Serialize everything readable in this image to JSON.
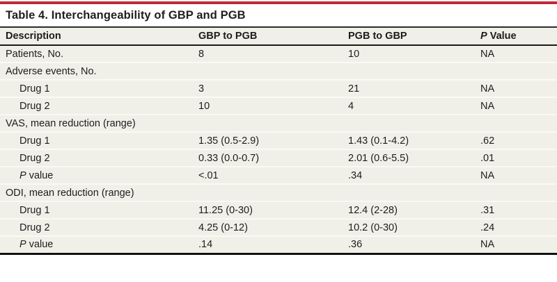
{
  "colors": {
    "accent": "#C12A39",
    "table_bg": "#F1F0E8",
    "rule_dark": "#1F1F1F",
    "row_separator": "#FAF9F2",
    "text": "#1C1C1C",
    "page_bg": "#FFFFFF"
  },
  "title": "Table 4. Interchangeability of GBP and PGB",
  "table": {
    "columns": [
      {
        "italic": "",
        "text": "Description"
      },
      {
        "italic": "",
        "text": "GBP to PGB"
      },
      {
        "italic": "",
        "text": "PGB to GBP"
      },
      {
        "italic": "P",
        "text": " Value"
      }
    ],
    "rows": [
      {
        "label": {
          "italic": "",
          "text": "Patients, No."
        },
        "indent": false,
        "values": [
          "8",
          "10",
          "NA"
        ]
      },
      {
        "label": {
          "italic": "",
          "text": "Adverse events, No."
        },
        "indent": false,
        "values": [
          "",
          "",
          ""
        ]
      },
      {
        "label": {
          "italic": "",
          "text": "Drug 1"
        },
        "indent": true,
        "values": [
          "3",
          "21",
          "NA"
        ]
      },
      {
        "label": {
          "italic": "",
          "text": "Drug 2"
        },
        "indent": true,
        "values": [
          "10",
          "4",
          "NA"
        ]
      },
      {
        "label": {
          "italic": "",
          "text": "VAS, mean reduction (range)"
        },
        "indent": false,
        "values": [
          "",
          "",
          ""
        ]
      },
      {
        "label": {
          "italic": "",
          "text": "Drug 1"
        },
        "indent": true,
        "values": [
          "1.35 (0.5-2.9)",
          "1.43 (0.1-4.2)",
          ".62"
        ]
      },
      {
        "label": {
          "italic": "",
          "text": "Drug 2"
        },
        "indent": true,
        "values": [
          "0.33 (0.0-0.7)",
          "2.01 (0.6-5.5)",
          ".01"
        ]
      },
      {
        "label": {
          "italic": "P",
          "text": " value"
        },
        "indent": true,
        "values": [
          "<.01",
          ".34",
          "NA"
        ]
      },
      {
        "label": {
          "italic": "",
          "text": "ODI, mean reduction (range)"
        },
        "indent": false,
        "values": [
          "",
          "",
          ""
        ]
      },
      {
        "label": {
          "italic": "",
          "text": "Drug 1"
        },
        "indent": true,
        "values": [
          "11.25 (0-30)",
          "12.4 (2-28)",
          ".31"
        ]
      },
      {
        "label": {
          "italic": "",
          "text": "Drug 2"
        },
        "indent": true,
        "values": [
          "4.25 (0-12)",
          "10.2 (0-30)",
          ".24"
        ]
      },
      {
        "label": {
          "italic": "P",
          "text": " value"
        },
        "indent": true,
        "values": [
          ".14",
          ".36",
          "NA"
        ]
      }
    ]
  }
}
